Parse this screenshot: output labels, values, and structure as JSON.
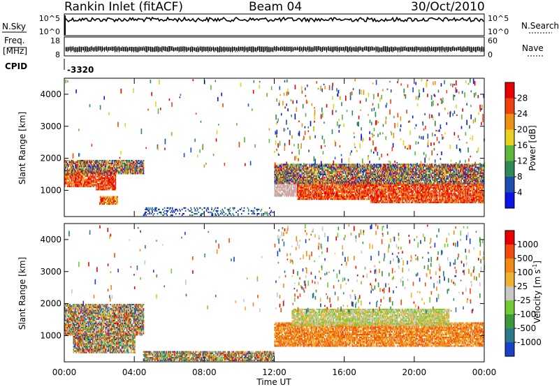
{
  "header": {
    "station": "Rankin Inlet (fitACF)",
    "beam": "Beam 04",
    "date": "30/Oct/2010"
  },
  "top_panel_labels": {
    "nsky": "N.Sky",
    "nsky_ticks": [
      "10^5",
      "10^0"
    ],
    "nsearch": "N.Search",
    "nsearch_ticks": [
      "10^5",
      "10^0"
    ],
    "freq": "Freq.",
    "freq_unit": "[MHz]",
    "freq_ticks": [
      "18",
      "8"
    ],
    "nave": "Nave",
    "nave_ticks": [
      "60",
      "0"
    ],
    "cpid": "CPID",
    "cpid_value": "-3320"
  },
  "chart_data": [
    {
      "type": "heatmap",
      "title": "",
      "ylabel": "Slant Range [km]",
      "xlabel": "",
      "ylim": [
        180,
        4500
      ],
      "y_ticks": [
        "1000",
        "2000",
        "3000",
        "4000"
      ],
      "x_range_hours": [
        0,
        24
      ],
      "colorbar": {
        "label": "Power [dB]",
        "ticks": [
          "4",
          "8",
          "12",
          "16",
          "20",
          "24",
          "28"
        ],
        "colors": [
          "#0a14e6",
          "#1e4fb0",
          "#2f8a55",
          "#5cb83a",
          "#e8d020",
          "#f09010",
          "#f04010",
          "#e80000"
        ]
      },
      "echo_regions": [
        {
          "t0": 0.0,
          "t1": 1.8,
          "r0": 1100,
          "r1": 1600,
          "level": "high"
        },
        {
          "t0": 1.8,
          "t1": 2.9,
          "r0": 1000,
          "r1": 1600,
          "level": "high"
        },
        {
          "t0": 0.0,
          "t1": 4.5,
          "r0": 1500,
          "r1": 1950,
          "level": "mixed"
        },
        {
          "t0": 2.0,
          "t1": 3.0,
          "r0": 550,
          "r1": 800,
          "level": "medium"
        },
        {
          "t0": 12.0,
          "t1": 13.3,
          "r0": 800,
          "r1": 1700,
          "level": "weak"
        },
        {
          "t0": 13.3,
          "t1": 17.5,
          "r0": 700,
          "r1": 1250,
          "level": "high"
        },
        {
          "t0": 17.5,
          "t1": 24.0,
          "r0": 600,
          "r1": 1200,
          "level": "high"
        },
        {
          "t0": 12.0,
          "t1": 24.0,
          "r0": 1200,
          "r1": 1800,
          "level": "mixed"
        },
        {
          "t0": 4.5,
          "t1": 12.0,
          "r0": 200,
          "r1": 450,
          "level": "low"
        }
      ]
    },
    {
      "type": "heatmap",
      "title": "",
      "ylabel": "Slant Range [km]",
      "xlabel": "Time UT",
      "ylim": [
        180,
        4500
      ],
      "y_ticks": [
        "1000",
        "2000",
        "3000",
        "4000"
      ],
      "x_ticks": [
        "00:00",
        "04:00",
        "08:00",
        "12:00",
        "16:00",
        "20:00",
        "00:00"
      ],
      "x_range_hours": [
        0,
        24
      ],
      "colorbar": {
        "label": "Velocity [m s-1]",
        "ticks": [
          "1000",
          "500",
          "100",
          "25",
          "-25",
          "-100",
          "-500",
          "-1000"
        ],
        "colors": [
          "#1a3fc8",
          "#2b7a8a",
          "#3a9a3a",
          "#70cc30",
          "#c8c8c8",
          "#f0b030",
          "#f08a10",
          "#f04a10",
          "#e80000"
        ]
      },
      "echo_regions": [
        {
          "t0": 0.0,
          "t1": 4.5,
          "r0": 1000,
          "r1": 1950,
          "level": "mixed"
        },
        {
          "t0": 0.5,
          "t1": 4.0,
          "r0": 450,
          "r1": 1000,
          "level": "mixed"
        },
        {
          "t0": 12.0,
          "t1": 24.0,
          "r0": 650,
          "r1": 1400,
          "level": "negative"
        },
        {
          "t0": 13.0,
          "t1": 22.0,
          "r0": 1300,
          "r1": 1800,
          "level": "near-zero"
        },
        {
          "t0": 4.5,
          "t1": 12.0,
          "r0": 200,
          "r1": 500,
          "level": "mixed"
        }
      ]
    }
  ]
}
